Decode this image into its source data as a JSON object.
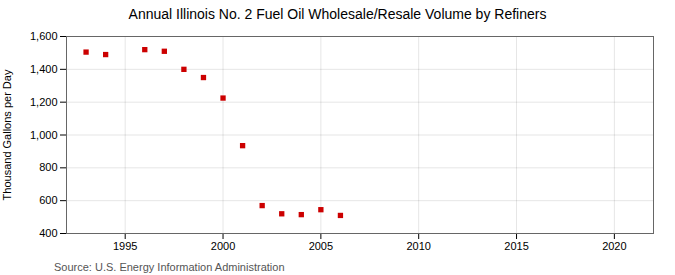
{
  "chart_data": {
    "type": "scatter",
    "title": "Annual Illinois No. 2 Fuel Oil Wholesale/Resale Volume by Refiners",
    "ylabel": "Thousand Gallons per Day",
    "annotation": "Source: U.S. Energy Information Administration",
    "x": [
      1993,
      1994,
      1996,
      1997,
      1998,
      1999,
      2000,
      2001,
      2002,
      2003,
      2004,
      2005,
      2006
    ],
    "values": [
      1505,
      1490,
      1520,
      1510,
      1400,
      1350,
      1225,
      935,
      570,
      520,
      515,
      545,
      510
    ],
    "color": "#cc0000",
    "marker": "square",
    "xlim": [
      1992,
      2022
    ],
    "xticks": [
      1995,
      2000,
      2005,
      2010,
      2015,
      2020
    ],
    "ylim": [
      400,
      1600
    ],
    "yticks": [
      400,
      600,
      800,
      {
        "value": 1000,
        "label": "1,000"
      },
      {
        "value": 1200,
        "label": "1,200"
      },
      {
        "value": 1400,
        "label": "1,400"
      },
      {
        "value": 1600,
        "label": "1,600"
      }
    ],
    "grid": true
  }
}
